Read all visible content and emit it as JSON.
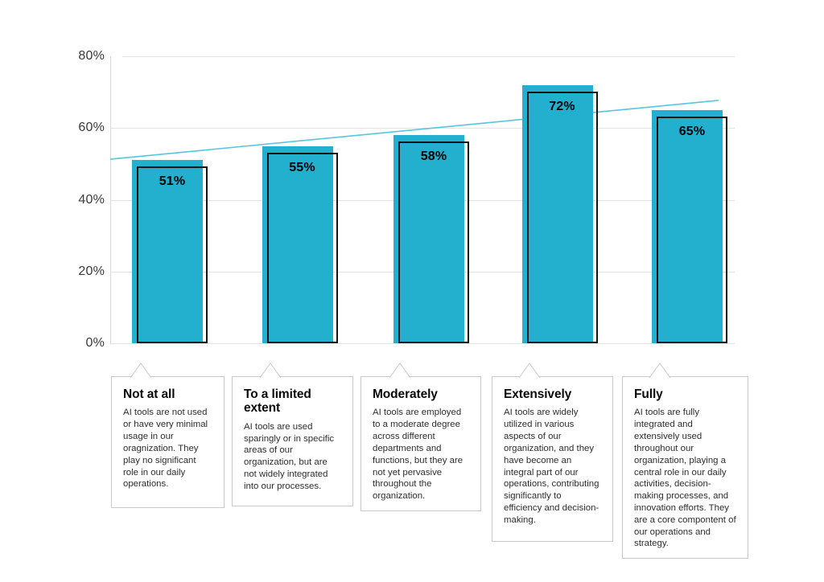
{
  "chart_data": {
    "type": "bar",
    "title": "",
    "categories": [
      "Not at all",
      "To a limited extent",
      "Moderately",
      "Extensively",
      "Fully"
    ],
    "values": [
      51,
      55,
      58,
      72,
      65
    ],
    "value_labels": [
      "51%",
      "55%",
      "58%",
      "72%",
      "65%"
    ],
    "xlabel": "",
    "ylabel": "",
    "ylim": [
      0,
      80
    ],
    "y_ticks": [
      0,
      20,
      40,
      60,
      80
    ],
    "y_tick_labels": [
      "0%",
      "20%",
      "40%",
      "60%",
      "80%"
    ],
    "grid": true,
    "legend": "none",
    "bar_color": "#22b0ce",
    "bar_outline_color": "#141414",
    "trendline": {
      "type": "linear",
      "start_value": 51.3,
      "end_value": 67.7,
      "color": "#55c6df"
    },
    "annotations": [
      {
        "title": "Not at all",
        "body": "AI tools are not used or have very minimal usage in our oragnization. They play no significant role in our daily operations."
      },
      {
        "title": "To a limited extent",
        "body": "AI tools are used sparingly or in specific areas of our organization, but are not widely integrated into our processes."
      },
      {
        "title": "Moderately",
        "body": "AI tools are employed to a moderate degree across different departments and functions, but they are not yet pervasive throughout the organization."
      },
      {
        "title": "Extensively",
        "body": "AI tools are widely utilized in various aspects of our organization, and they have become an integral part of our operations, contributing significantly to efficiency and decision-making."
      },
      {
        "title": "Fully",
        "body": "AI tools are fully integrated and extensively used throughout our organization, playing a central role in our daily activities, decision-making processes, and innovation efforts. They are a core compontent of our operations and strategy."
      }
    ]
  }
}
